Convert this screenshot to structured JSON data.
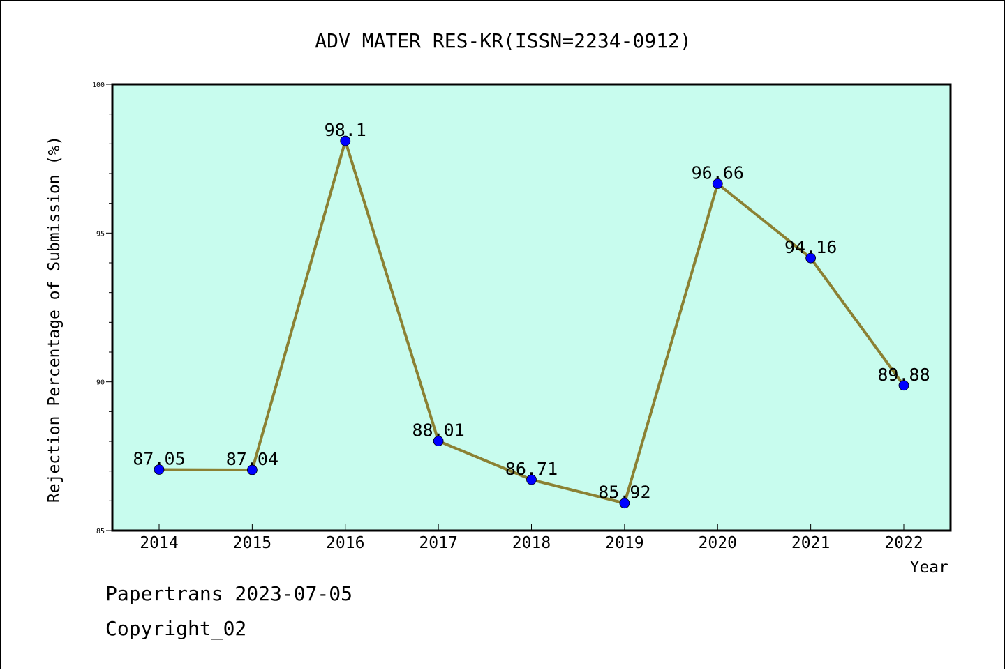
{
  "chart_data": {
    "type": "line",
    "title": "ADV MATER RES-KR(ISSN=2234-0912)",
    "xlabel": "Year",
    "ylabel": "Rejection Percentage of Submission (%)",
    "categories": [
      "2014",
      "2015",
      "2016",
      "2017",
      "2018",
      "2019",
      "2020",
      "2021",
      "2022"
    ],
    "values": [
      87.05,
      87.04,
      98.1,
      88.01,
      86.71,
      85.92,
      96.66,
      94.16,
      89.88
    ],
    "data_labels": [
      "87.05",
      "87.04",
      "98.1",
      "88.01",
      "86.71",
      "85.92",
      "96.66",
      "94.16",
      "89.88"
    ],
    "ylim": [
      85,
      100
    ],
    "y_ticks": [
      85,
      90,
      95,
      100
    ],
    "y_tick_labels": [
      "85",
      "90",
      "95",
      "100"
    ],
    "grid": false,
    "legend": "none",
    "colors": {
      "plot_background": "#c8fcee",
      "line": "#8b8133",
      "marker": "#0000ff"
    }
  },
  "footer": {
    "line1": "Papertrans 2023-07-05",
    "line2": "Copyright_02"
  }
}
